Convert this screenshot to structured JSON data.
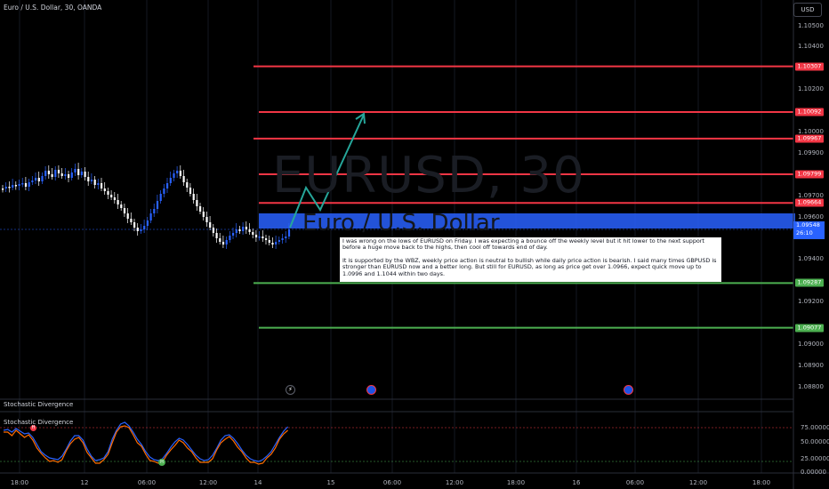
{
  "header": {
    "symbol_title": "Euro / U.S. Dollar, 30, OANDA"
  },
  "scale_button": "USD",
  "watermark": {
    "symbol": "EURUSD, 30",
    "description": "Euro / U.S. Dollar"
  },
  "price_axis": [
    "1.10500",
    "1.10400",
    "1.10200",
    "1.10000",
    "1.09900",
    "1.09700",
    "1.09600",
    "1.09400",
    "1.09200",
    "1.09000",
    "1.08900",
    "1.08800"
  ],
  "levels": {
    "resistance": [
      "1.10307",
      "1.10092",
      "1.09967",
      "1.09799",
      "1.09664"
    ],
    "support": [
      "1.09287",
      "1.09077"
    ]
  },
  "current_price": {
    "value": "1.09548",
    "countdown": "26:10"
  },
  "time_axis": [
    "18:00",
    "12",
    "06:00",
    "12:00",
    "14",
    "15",
    "06:00",
    "12:00",
    "18:00",
    "16",
    "06:00",
    "12:00",
    "18:00"
  ],
  "note": {
    "paragraph1": "I was wrong on the lows of EURUSD on Friday. I was expecting a bounce off the weekly level but it hit lower to the next support before a huge move back to the highs, then cool off towards end of day.",
    "paragraph2": "It is supported by the WBZ, weekly price action is neutral to bullish while daily price action is bearish. I said many times GBPUSD is stronger than EURUSD now and a better long. But still for EURUSD, as long as price get over 1.0966, expect quick move up to 1.0996 and 1.1044 within two days."
  },
  "indicator": {
    "name": "Stochastic Divergence",
    "axis": [
      "75.00000",
      "50.00000",
      "25.00000",
      "0.00000"
    ],
    "markers": {
      "high": "H",
      "low": "H"
    }
  },
  "events": {
    "lightning": "⚡"
  },
  "colors": {
    "resistance": "#f23645",
    "support": "#4caf50",
    "arrow": "#26a69a",
    "zone": "#2962ff",
    "stoch_k": "#2962ff",
    "stoch_d": "#ff6d00"
  }
}
